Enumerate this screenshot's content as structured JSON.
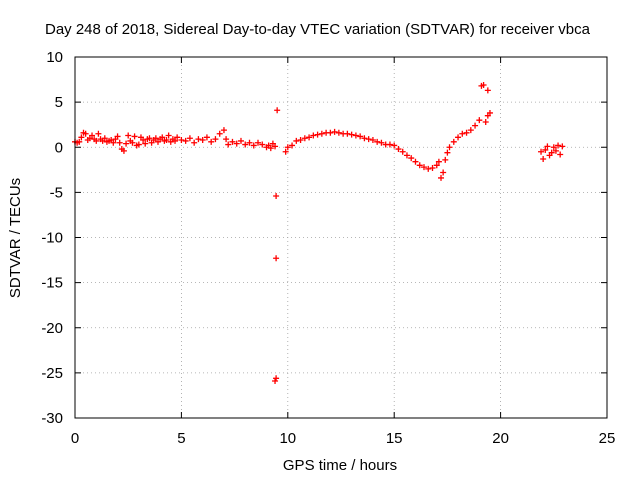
{
  "chart_data": {
    "type": "scatter",
    "title": "Day 248 of 2018, Sidereal Day-to-day VTEC variation (SDTVAR) for receiver vbca",
    "xlabel": "GPS time / hours",
    "ylabel": "SDTVAR / TECUs",
    "xlim": [
      0,
      25
    ],
    "ylim": [
      -30,
      10
    ],
    "xticks": [
      0,
      5,
      10,
      15,
      20,
      25
    ],
    "yticks": [
      -30,
      -25,
      -20,
      -15,
      -10,
      -5,
      0,
      5,
      10
    ],
    "grid": true,
    "legend": "none",
    "marker": "+",
    "series": [
      {
        "name": "vbca",
        "color": "#ff0000",
        "points": [
          [
            0.0,
            0.6
          ],
          [
            0.1,
            0.5
          ],
          [
            0.2,
            0.6
          ],
          [
            0.3,
            1.1
          ],
          [
            0.4,
            1.6
          ],
          [
            0.5,
            1.5
          ],
          [
            0.6,
            0.8
          ],
          [
            0.7,
            1.0
          ],
          [
            0.8,
            1.3
          ],
          [
            0.9,
            0.9
          ],
          [
            1.0,
            0.7
          ],
          [
            1.1,
            1.5
          ],
          [
            1.2,
            0.9
          ],
          [
            1.3,
            0.7
          ],
          [
            1.4,
            1.0
          ],
          [
            1.5,
            0.6
          ],
          [
            1.6,
            0.7
          ],
          [
            1.7,
            0.8
          ],
          [
            1.8,
            0.5
          ],
          [
            1.9,
            0.9
          ],
          [
            2.0,
            1.2
          ],
          [
            2.1,
            0.5
          ],
          [
            2.2,
            -0.2
          ],
          [
            2.3,
            -0.4
          ],
          [
            2.4,
            0.4
          ],
          [
            2.5,
            1.3
          ],
          [
            2.6,
            0.7
          ],
          [
            2.7,
            0.5
          ],
          [
            2.8,
            1.2
          ],
          [
            2.9,
            0.2
          ],
          [
            3.0,
            0.3
          ],
          [
            3.1,
            1.1
          ],
          [
            3.2,
            0.8
          ],
          [
            3.3,
            0.4
          ],
          [
            3.4,
            0.9
          ],
          [
            3.5,
            1.0
          ],
          [
            3.6,
            0.5
          ],
          [
            3.7,
            0.8
          ],
          [
            3.8,
            1.0
          ],
          [
            3.9,
            0.6
          ],
          [
            4.0,
            0.9
          ],
          [
            4.1,
            1.1
          ],
          [
            4.2,
            0.7
          ],
          [
            4.3,
            0.8
          ],
          [
            4.4,
            1.3
          ],
          [
            4.5,
            0.6
          ],
          [
            4.6,
            0.9
          ],
          [
            4.7,
            0.7
          ],
          [
            4.8,
            1.1
          ],
          [
            5.0,
            0.8
          ],
          [
            5.2,
            0.7
          ],
          [
            5.4,
            1.0
          ],
          [
            5.6,
            0.5
          ],
          [
            5.8,
            0.9
          ],
          [
            6.0,
            0.8
          ],
          [
            6.2,
            1.1
          ],
          [
            6.4,
            0.6
          ],
          [
            6.6,
            0.9
          ],
          [
            6.8,
            1.5
          ],
          [
            7.0,
            1.9
          ],
          [
            7.1,
            0.9
          ],
          [
            7.2,
            0.3
          ],
          [
            7.4,
            0.6
          ],
          [
            7.6,
            0.4
          ],
          [
            7.8,
            0.7
          ],
          [
            8.0,
            0.3
          ],
          [
            8.2,
            0.5
          ],
          [
            8.4,
            0.2
          ],
          [
            8.6,
            0.5
          ],
          [
            8.8,
            0.3
          ],
          [
            9.0,
            0.0
          ],
          [
            9.1,
            0.2
          ],
          [
            9.2,
            -0.1
          ],
          [
            9.3,
            0.4
          ],
          [
            9.4,
            0.1
          ],
          [
            9.5,
            4.1
          ],
          [
            9.45,
            -5.4
          ],
          [
            9.45,
            -12.3
          ],
          [
            9.45,
            -25.6
          ],
          [
            9.4,
            -25.9
          ],
          [
            9.9,
            -0.5
          ],
          [
            10.0,
            0.0
          ],
          [
            10.2,
            0.2
          ],
          [
            10.4,
            0.7
          ],
          [
            10.6,
            0.8
          ],
          [
            10.8,
            1.0
          ],
          [
            11.0,
            1.1
          ],
          [
            11.2,
            1.3
          ],
          [
            11.4,
            1.4
          ],
          [
            11.6,
            1.5
          ],
          [
            11.8,
            1.6
          ],
          [
            12.0,
            1.6
          ],
          [
            12.2,
            1.7
          ],
          [
            12.4,
            1.6
          ],
          [
            12.6,
            1.5
          ],
          [
            12.8,
            1.5
          ],
          [
            13.0,
            1.4
          ],
          [
            13.2,
            1.3
          ],
          [
            13.4,
            1.2
          ],
          [
            13.6,
            1.0
          ],
          [
            13.8,
            0.9
          ],
          [
            14.0,
            0.8
          ],
          [
            14.2,
            0.6
          ],
          [
            14.4,
            0.5
          ],
          [
            14.6,
            0.3
          ],
          [
            14.8,
            0.3
          ],
          [
            15.0,
            0.2
          ],
          [
            15.2,
            -0.2
          ],
          [
            15.4,
            -0.5
          ],
          [
            15.6,
            -0.9
          ],
          [
            15.8,
            -1.2
          ],
          [
            16.0,
            -1.6
          ],
          [
            16.2,
            -2.0
          ],
          [
            16.4,
            -2.2
          ],
          [
            16.6,
            -2.4
          ],
          [
            16.8,
            -2.3
          ],
          [
            17.0,
            -2.0
          ],
          [
            17.1,
            -1.6
          ],
          [
            17.2,
            -3.4
          ],
          [
            17.3,
            -2.8
          ],
          [
            17.4,
            -1.4
          ],
          [
            17.5,
            -0.6
          ],
          [
            17.6,
            0.0
          ],
          [
            17.8,
            0.6
          ],
          [
            18.0,
            1.1
          ],
          [
            18.2,
            1.5
          ],
          [
            18.4,
            1.6
          ],
          [
            18.6,
            1.9
          ],
          [
            18.8,
            2.4
          ],
          [
            19.0,
            3.0
          ],
          [
            19.1,
            6.8
          ],
          [
            19.2,
            6.9
          ],
          [
            19.4,
            6.3
          ],
          [
            19.3,
            2.8
          ],
          [
            19.4,
            3.5
          ],
          [
            19.5,
            3.8
          ],
          [
            21.9,
            -0.5
          ],
          [
            22.0,
            -1.3
          ],
          [
            22.1,
            -0.3
          ],
          [
            22.2,
            0.1
          ],
          [
            22.3,
            -0.9
          ],
          [
            22.4,
            -0.6
          ],
          [
            22.5,
            0.0
          ],
          [
            22.6,
            -0.4
          ],
          [
            22.7,
            0.2
          ],
          [
            22.8,
            -0.8
          ],
          [
            22.9,
            0.1
          ]
        ]
      }
    ]
  }
}
